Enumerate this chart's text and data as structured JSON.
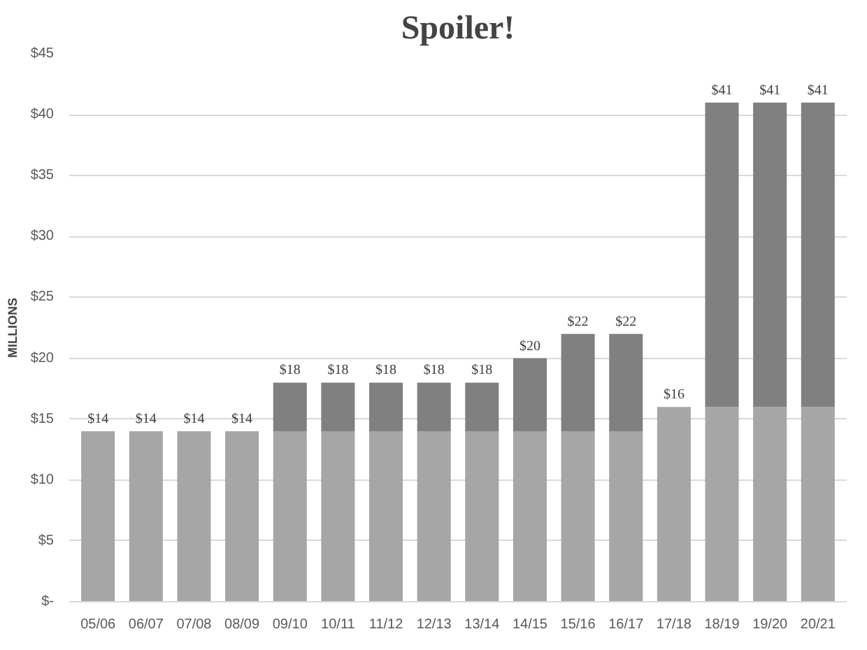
{
  "chart_data": {
    "type": "bar",
    "title": "Spoiler!",
    "ylabel": "MILLIONS",
    "categories": [
      "05/06",
      "06/07",
      "07/08",
      "08/09",
      "09/10",
      "10/11",
      "11/12",
      "12/13",
      "13/14",
      "14/15",
      "15/16",
      "16/17",
      "17/18",
      "18/19",
      "19/20",
      "20/21"
    ],
    "stacked": true,
    "series": [
      {
        "color": "#a6a6a6",
        "values": [
          14,
          14,
          14,
          14,
          14,
          14,
          14,
          14,
          14,
          14,
          14,
          14,
          16,
          16,
          16,
          16
        ]
      },
      {
        "color": "#808080",
        "values": [
          0,
          0,
          0,
          0,
          4,
          4,
          4,
          4,
          4,
          6,
          8,
          8,
          0,
          25,
          25,
          25
        ]
      }
    ],
    "totals": [
      "$14",
      "$14",
      "$14",
      "$14",
      "$18",
      "$18",
      "$18",
      "$18",
      "$18",
      "$20",
      "$22",
      "$22",
      "$16",
      "$41",
      "$41",
      "$41"
    ],
    "ylim": [
      0,
      45
    ],
    "yticks": [
      {
        "value": 0,
        "label": "$-"
      },
      {
        "value": 5,
        "label": "$5"
      },
      {
        "value": 10,
        "label": "$10"
      },
      {
        "value": 15,
        "label": "$15"
      },
      {
        "value": 20,
        "label": "$20"
      },
      {
        "value": 25,
        "label": "$25"
      },
      {
        "value": 30,
        "label": "$30"
      },
      {
        "value": 35,
        "label": "$35"
      },
      {
        "value": 40,
        "label": "$40"
      },
      {
        "value": 45,
        "label": "$45"
      }
    ],
    "grid": "y"
  }
}
